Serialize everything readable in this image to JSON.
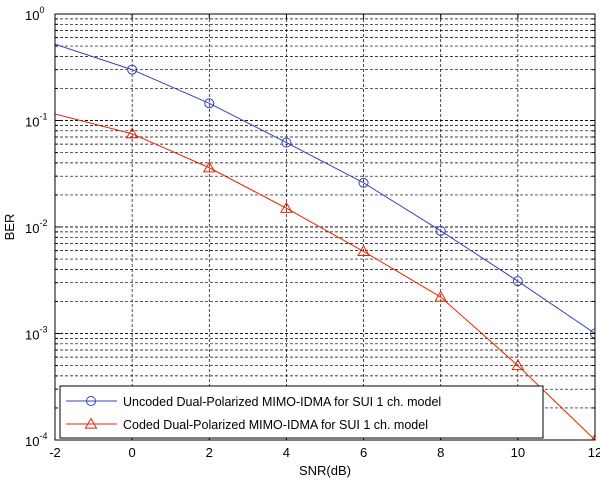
{
  "chart_data": {
    "type": "line",
    "title": "",
    "xlabel": "SNR(dB)",
    "ylabel": "BER",
    "xlim": [
      -2,
      12
    ],
    "ylim": [
      0.0001,
      1
    ],
    "yscale": "log",
    "grid": true,
    "legend_position": "bottom-left",
    "x_ticks": [
      -2,
      0,
      2,
      4,
      6,
      8,
      10,
      12
    ],
    "x_tick_labels": [
      "-2",
      "0",
      "2",
      "4",
      "6",
      "8",
      "10",
      "12"
    ],
    "y_ticks": [
      {
        "value": 1,
        "base": "10",
        "exp": "0"
      },
      {
        "value": 0.1,
        "base": "10",
        "exp": "-1"
      },
      {
        "value": 0.01,
        "base": "10",
        "exp": "-2"
      },
      {
        "value": 0.001,
        "base": "10",
        "exp": "-3"
      },
      {
        "value": 0.0001,
        "base": "10",
        "exp": "-4"
      }
    ],
    "series": [
      {
        "name": "Uncoded Dual-Polarized MIMO-IDMA for SUI 1 ch. model",
        "color": "#3344bb",
        "marker": "circle",
        "x": [
          -2,
          0,
          2,
          4,
          6,
          8,
          10,
          12
        ],
        "y": [
          0.52,
          0.3,
          0.145,
          0.062,
          0.026,
          0.0092,
          0.0031,
          0.001
        ]
      },
      {
        "name": "Coded Dual-Polarized MIMO-IDMA for SUI 1 ch. model",
        "color": "#ee2200",
        "marker": "triangle",
        "x": [
          -2,
          0,
          2,
          4,
          6,
          8,
          10,
          12
        ],
        "y": [
          0.115,
          0.075,
          0.036,
          0.015,
          0.0059,
          0.0022,
          0.0005,
          0.0001
        ]
      }
    ]
  }
}
